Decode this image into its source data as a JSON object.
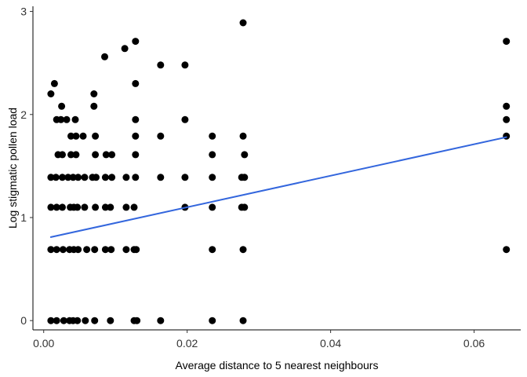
{
  "chart_data": {
    "type": "scatter",
    "xlabel": "Average distance to 5 nearest neighbours",
    "ylabel": "Log stigmatic pollen load",
    "xlim": [
      -0.0015,
      0.0665
    ],
    "ylim": [
      -0.09,
      3.05
    ],
    "x_ticks": [
      0.0,
      0.02,
      0.04,
      0.06
    ],
    "x_tick_labels": [
      "0.00",
      "0.02",
      "0.04",
      "0.06"
    ],
    "y_ticks": [
      0,
      1,
      2,
      3
    ],
    "y_tick_labels": [
      "0",
      "1",
      "2",
      "3"
    ],
    "grid": false,
    "point_color": "#000000",
    "trend_line": {
      "type": "linear",
      "color": "#3366dd",
      "x": [
        0.001,
        0.0645
      ],
      "y": [
        0.81,
        1.78
      ]
    },
    "points": [
      [
        0.001,
        2.2
      ],
      [
        0.0015,
        2.3
      ],
      [
        0.0025,
        2.08
      ],
      [
        0.0032,
        1.95
      ],
      [
        0.0044,
        1.95
      ],
      [
        0.0018,
        1.95
      ],
      [
        0.0024,
        1.95
      ],
      [
        0.0038,
        1.79
      ],
      [
        0.0045,
        1.79
      ],
      [
        0.0055,
        1.79
      ],
      [
        0.0072,
        1.79
      ],
      [
        0.002,
        1.61
      ],
      [
        0.0026,
        1.61
      ],
      [
        0.0038,
        1.61
      ],
      [
        0.0045,
        1.61
      ],
      [
        0.0072,
        1.61
      ],
      [
        0.0087,
        1.61
      ],
      [
        0.0095,
        1.61
      ],
      [
        0.001,
        1.39
      ],
      [
        0.0017,
        1.39
      ],
      [
        0.0026,
        1.39
      ],
      [
        0.0034,
        1.39
      ],
      [
        0.0041,
        1.39
      ],
      [
        0.0048,
        1.39
      ],
      [
        0.0057,
        1.39
      ],
      [
        0.0068,
        1.39
      ],
      [
        0.0073,
        1.39
      ],
      [
        0.0086,
        1.39
      ],
      [
        0.0095,
        1.39
      ],
      [
        0.0115,
        1.39
      ],
      [
        0.0128,
        1.39
      ],
      [
        0.001,
        1.1
      ],
      [
        0.0018,
        1.1
      ],
      [
        0.0026,
        1.1
      ],
      [
        0.0037,
        1.1
      ],
      [
        0.0042,
        1.1
      ],
      [
        0.0047,
        1.1
      ],
      [
        0.0057,
        1.1
      ],
      [
        0.0072,
        1.1
      ],
      [
        0.0086,
        1.1
      ],
      [
        0.0093,
        1.1
      ],
      [
        0.0115,
        1.1
      ],
      [
        0.0126,
        1.1
      ],
      [
        0.001,
        0.69
      ],
      [
        0.0018,
        0.69
      ],
      [
        0.0027,
        0.69
      ],
      [
        0.0036,
        0.69
      ],
      [
        0.0042,
        0.69
      ],
      [
        0.0048,
        0.69
      ],
      [
        0.006,
        0.69
      ],
      [
        0.0071,
        0.69
      ],
      [
        0.0086,
        0.69
      ],
      [
        0.0094,
        0.69
      ],
      [
        0.0115,
        0.69
      ],
      [
        0.0126,
        0.69
      ],
      [
        0.0129,
        0.69
      ],
      [
        0.001,
        0.0
      ],
      [
        0.0018,
        0.0
      ],
      [
        0.0028,
        0.0
      ],
      [
        0.0036,
        0.0
      ],
      [
        0.0041,
        0.0
      ],
      [
        0.0047,
        0.0
      ],
      [
        0.0058,
        0.0
      ],
      [
        0.0071,
        0.0
      ],
      [
        0.0093,
        0.0
      ],
      [
        0.0126,
        0.0
      ],
      [
        0.013,
        0.0
      ],
      [
        0.0163,
        0.0
      ],
      [
        0.0235,
        0.0
      ],
      [
        0.0278,
        0.0
      ],
      [
        0.0085,
        2.56
      ],
      [
        0.0113,
        2.64
      ],
      [
        0.0128,
        2.71
      ],
      [
        0.0128,
        2.3
      ],
      [
        0.0163,
        2.48
      ],
      [
        0.0197,
        2.48
      ],
      [
        0.0278,
        2.89
      ],
      [
        0.007,
        2.2
      ],
      [
        0.007,
        2.08
      ],
      [
        0.0128,
        1.95
      ],
      [
        0.0197,
        1.95
      ],
      [
        0.0128,
        1.79
      ],
      [
        0.0163,
        1.79
      ],
      [
        0.0235,
        1.79
      ],
      [
        0.0278,
        1.79
      ],
      [
        0.0128,
        1.61
      ],
      [
        0.0235,
        1.61
      ],
      [
        0.028,
        1.61
      ],
      [
        0.0163,
        1.39
      ],
      [
        0.0197,
        1.39
      ],
      [
        0.0235,
        1.39
      ],
      [
        0.0276,
        1.39
      ],
      [
        0.028,
        1.39
      ],
      [
        0.0197,
        1.1
      ],
      [
        0.0235,
        1.1
      ],
      [
        0.0276,
        1.1
      ],
      [
        0.028,
        1.1
      ],
      [
        0.0235,
        0.69
      ],
      [
        0.0278,
        0.69
      ],
      [
        0.0645,
        2.71
      ],
      [
        0.0645,
        2.08
      ],
      [
        0.0645,
        1.95
      ],
      [
        0.0645,
        1.79
      ],
      [
        0.0645,
        0.69
      ]
    ]
  }
}
